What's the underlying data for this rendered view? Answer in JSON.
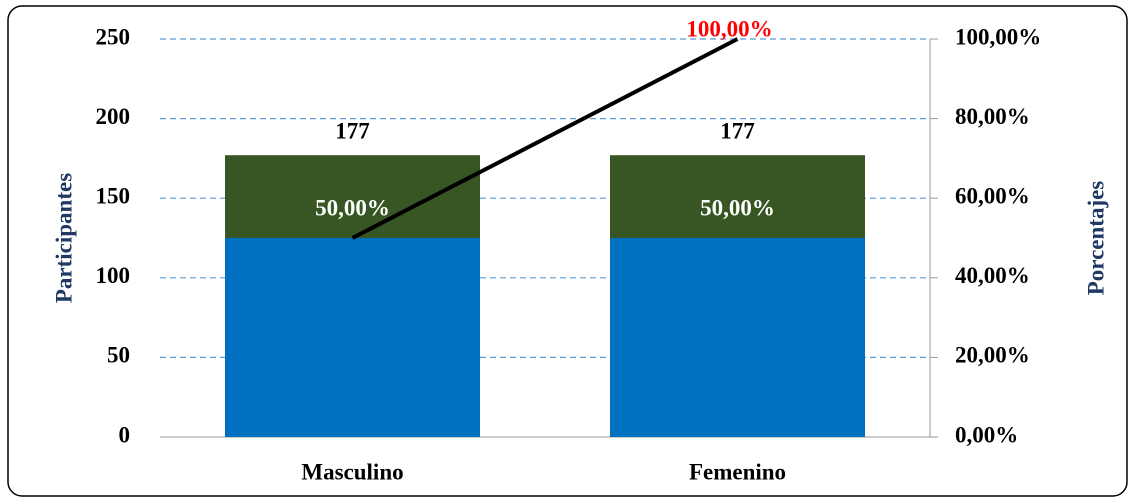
{
  "chart_data": {
    "type": "bar",
    "categories": [
      "Masculino",
      "Femenino"
    ],
    "ylabel": "Participantes",
    "y2label": "Porcentajes",
    "ylim": [
      0,
      250
    ],
    "yticks": [
      0,
      50,
      100,
      150,
      200,
      250
    ],
    "y2lim": [
      0,
      100
    ],
    "y2ticks": [
      {
        "value": 0,
        "label": "0,00%"
      },
      {
        "value": 20,
        "label": "20,00%"
      },
      {
        "value": 40,
        "label": "40,00%"
      },
      {
        "value": 60,
        "label": "60,00%"
      },
      {
        "value": 80,
        "label": "80,00%"
      },
      {
        "value": 100,
        "label": "100,00%"
      }
    ],
    "grid": true,
    "series": [
      {
        "type": "bar",
        "color": "#375623",
        "values": [
          177,
          177
        ],
        "value_labels": [
          "177",
          "177"
        ]
      },
      {
        "type": "bar",
        "axis": "y2",
        "color": "#0070c0",
        "values": [
          50,
          50
        ],
        "value_labels": [
          "50,00%",
          "50,00%"
        ]
      },
      {
        "type": "line",
        "axis": "y2",
        "color": "#000000",
        "values": [
          50,
          100
        ],
        "value_labels": [
          null,
          "100,00%"
        ]
      }
    ]
  }
}
